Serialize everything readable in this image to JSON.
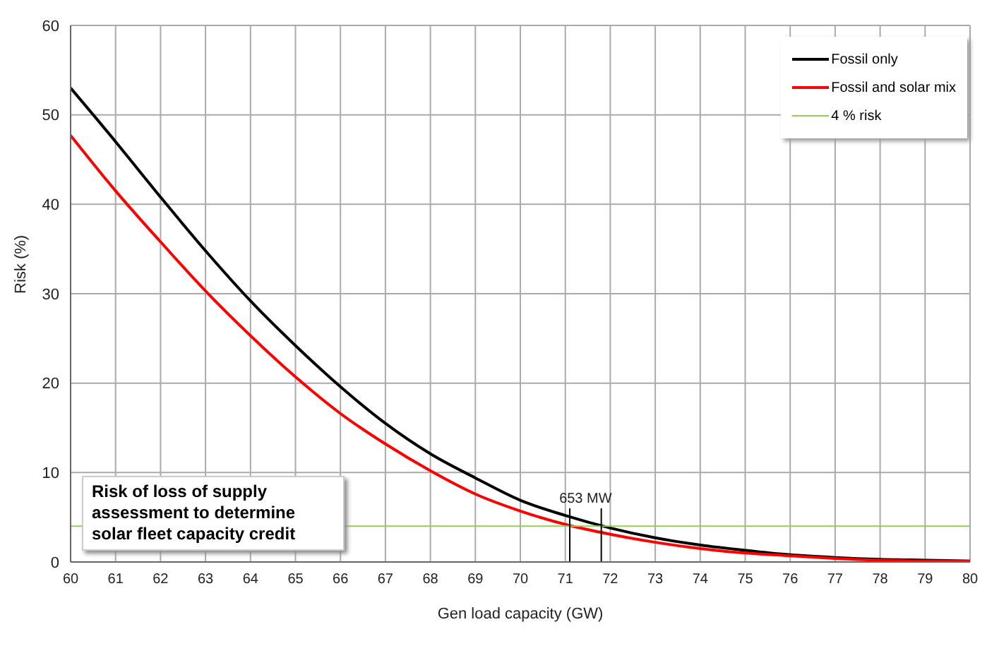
{
  "chart_data": {
    "type": "line",
    "xlabel": "Gen load capacity (GW)",
    "ylabel": "Risk (%)",
    "x": [
      60,
      61,
      62,
      63,
      64,
      65,
      66,
      67,
      68,
      69,
      70,
      71,
      72,
      73,
      74,
      75,
      76,
      77,
      78,
      79,
      80
    ],
    "series": [
      {
        "name": "Fossil only",
        "color": "#000000",
        "values": [
          53,
          47,
          40.8,
          34.8,
          29.2,
          24.2,
          19.6,
          15.5,
          12.1,
          9.4,
          6.9,
          5.2,
          3.8,
          2.7,
          1.9,
          1.3,
          0.8,
          0.5,
          0.3,
          0.2,
          0.1
        ]
      },
      {
        "name": "Fossil and solar mix",
        "color": "#ff0000",
        "values": [
          47.7,
          41.5,
          35.8,
          30.3,
          25.3,
          20.7,
          16.6,
          13.2,
          10.2,
          7.6,
          5.7,
          4.2,
          3.1,
          2.2,
          1.5,
          1.0,
          0.7,
          0.4,
          0.2,
          0.1,
          0.1
        ]
      },
      {
        "name": "4 % risk",
        "color": "#92d050",
        "x": [
          60,
          80
        ],
        "values": [
          4,
          4
        ]
      },
      {
        "color": "#000000",
        "x": [
          71.1,
          71.1
        ],
        "values": [
          0,
          6
        ]
      },
      {
        "color": "#000000",
        "x": [
          71.8,
          71.8
        ],
        "values": [
          0,
          6
        ]
      }
    ],
    "annotations": [
      "653 MW",
      "Risk of loss of supply assessment to determine solar fleet capacity credit"
    ],
    "xlim": [
      60,
      80
    ],
    "xticks": [
      60,
      61,
      62,
      63,
      64,
      65,
      66,
      67,
      68,
      69,
      70,
      71,
      72,
      73,
      74,
      75,
      76,
      77,
      78,
      79,
      80
    ],
    "ylim": [
      0,
      60
    ],
    "yticks": [
      0,
      10,
      20,
      30,
      40,
      50,
      60
    ],
    "grid": true,
    "legend": "top right",
    "marker": "none",
    "line_style": "solid"
  }
}
